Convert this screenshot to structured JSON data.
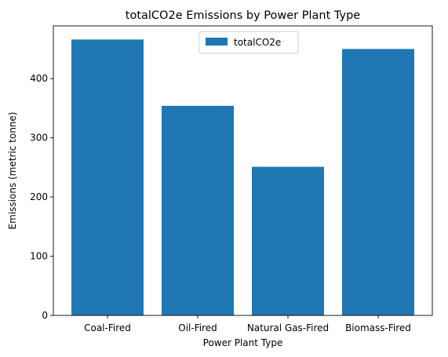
{
  "chart_data": {
    "type": "bar",
    "title": "totalCO2e Emissions by Power Plant Type",
    "xlabel": "Power Plant Type",
    "ylabel": "Emissions (metric tonne)",
    "categories": [
      "Coal-Fired",
      "Oil-Fired",
      "Natural Gas-Fired",
      "Biomass-Fired"
    ],
    "series": [
      {
        "name": "totalCO2e",
        "values": [
          466,
          354,
          251,
          450
        ],
        "color": "#1f77b4"
      }
    ],
    "ylim": [
      0,
      489
    ],
    "yticks": [
      0,
      100,
      200,
      300,
      400
    ],
    "grid": false,
    "legend": "upper-center"
  }
}
